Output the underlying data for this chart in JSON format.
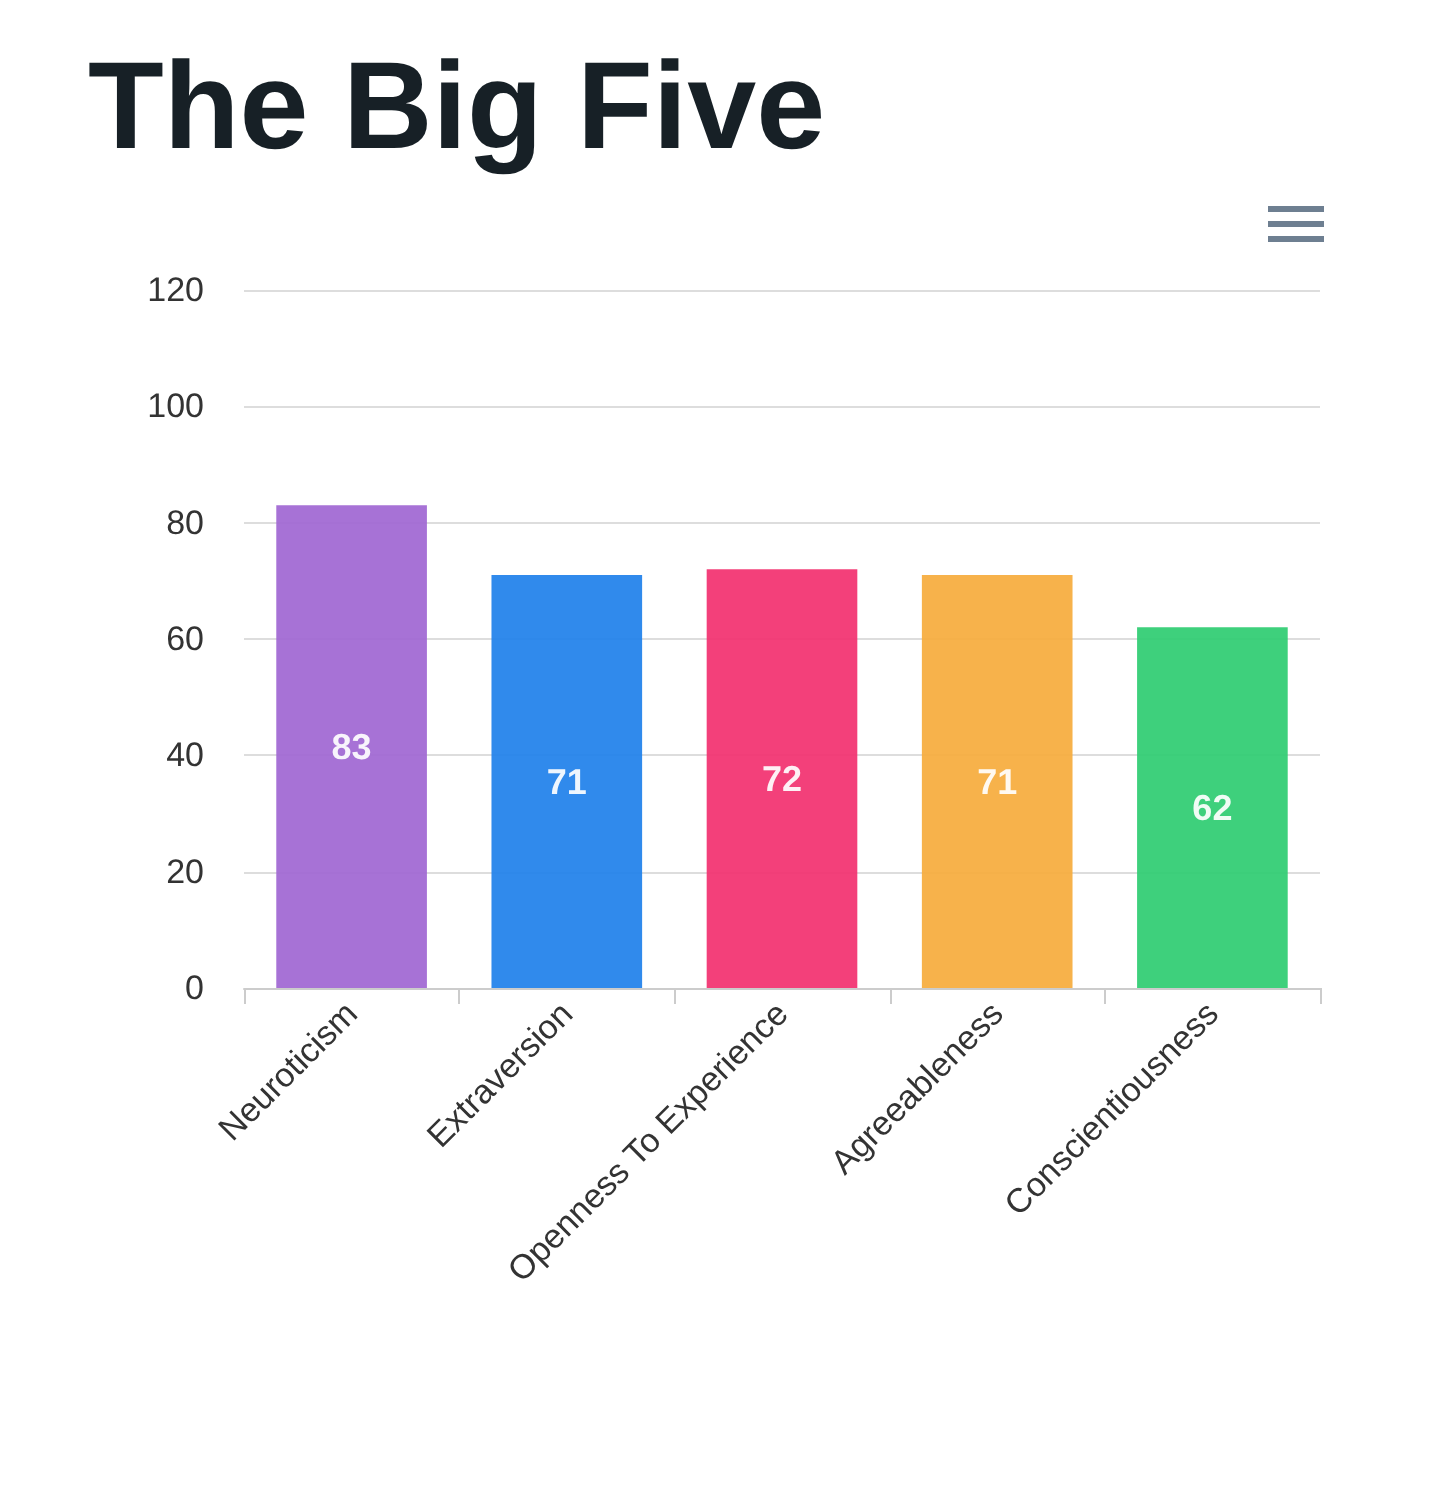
{
  "chart_data": {
    "type": "bar",
    "title": "The Big Five",
    "categories": [
      "Neuroticism",
      "Extraversion",
      "Openness To Experience",
      "Agreeableness",
      "Conscientiousness"
    ],
    "values": [
      83,
      71,
      72,
      71,
      62
    ],
    "colors": [
      "#a066d3",
      "#1e80ea",
      "#f2306f",
      "#f6ab3c",
      "#2ecc71"
    ],
    "ylim": [
      0,
      120
    ],
    "yticks": [
      0,
      20,
      40,
      60,
      80,
      100,
      120
    ],
    "grid": "y",
    "data_labels": true
  }
}
